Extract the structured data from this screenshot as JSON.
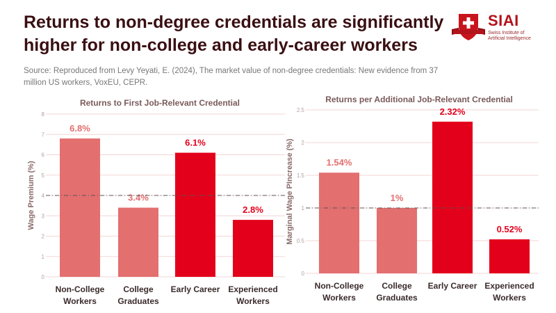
{
  "header": {
    "title_line1": "Returns to non-degree credentials are significantly",
    "title_line2": "higher for non-college and early-career workers",
    "source_line1": "Source: Reproduced from Levy Yeyati, E. (2024), The market value of non-degree credentials: New evidence from 37",
    "source_line2": "million US workers, VoxEU, CEPR."
  },
  "logo": {
    "name": "SIAI",
    "subtitle_line1": "Swiss Institute of",
    "subtitle_line2": "Artificial Intelligence",
    "badge_text": "SWISS INSTITUTE OF ARTIFICIAL INTELLIGENCE",
    "brand_color": "#b3141c"
  },
  "colors": {
    "bar_light": "#e36f6f",
    "bar_dark": "#e3001b",
    "grid": "#f3d6d6",
    "ref_line": "#555555"
  },
  "chart_data": [
    {
      "type": "bar",
      "title": "Returns to First Job-Relevant Credential",
      "xlabel": "",
      "ylabel": "Wage Premium (%)",
      "categories": [
        [
          "Non-College",
          "Workers"
        ],
        [
          "College",
          "Graduates"
        ],
        [
          "Early Career"
        ],
        [
          "Experienced",
          "Workers"
        ]
      ],
      "values": [
        6.8,
        3.4,
        6.1,
        2.8
      ],
      "value_labels": [
        "6.8%",
        "3.4%",
        "6.1%",
        "2.8%"
      ],
      "bar_colors": [
        "light",
        "light",
        "dark",
        "dark"
      ],
      "ylim": [
        0,
        8
      ],
      "yticks": [
        0,
        1,
        2,
        3,
        4,
        5,
        6,
        7,
        8
      ],
      "ytick_labels": [
        "0",
        "1",
        "2",
        "3",
        "4",
        "5",
        "6",
        "7",
        "8"
      ],
      "reference_line": 4,
      "grid": true
    },
    {
      "type": "bar",
      "title": "Returns per Additional Job-Relevant Credential",
      "xlabel": "",
      "ylabel": "Marginal Wage  PIncrease (%)",
      "categories": [
        [
          "Non-College",
          "Workers"
        ],
        [
          "College",
          "Graduates"
        ],
        [
          "Early Career"
        ],
        [
          "Experienced",
          "Workers"
        ]
      ],
      "values": [
        1.54,
        1.0,
        2.32,
        0.52
      ],
      "value_labels": [
        "1.54%",
        "1%",
        "2.32%",
        "0.52%"
      ],
      "bar_colors": [
        "light",
        "light",
        "dark",
        "dark"
      ],
      "ylim": [
        0,
        2.5
      ],
      "yticks": [
        0,
        0.5,
        1,
        1.5,
        2,
        2.5
      ],
      "ytick_labels": [
        "0",
        "0.5",
        "1",
        "1.5",
        "2",
        "2.5"
      ],
      "reference_line": 1,
      "grid": true
    }
  ]
}
